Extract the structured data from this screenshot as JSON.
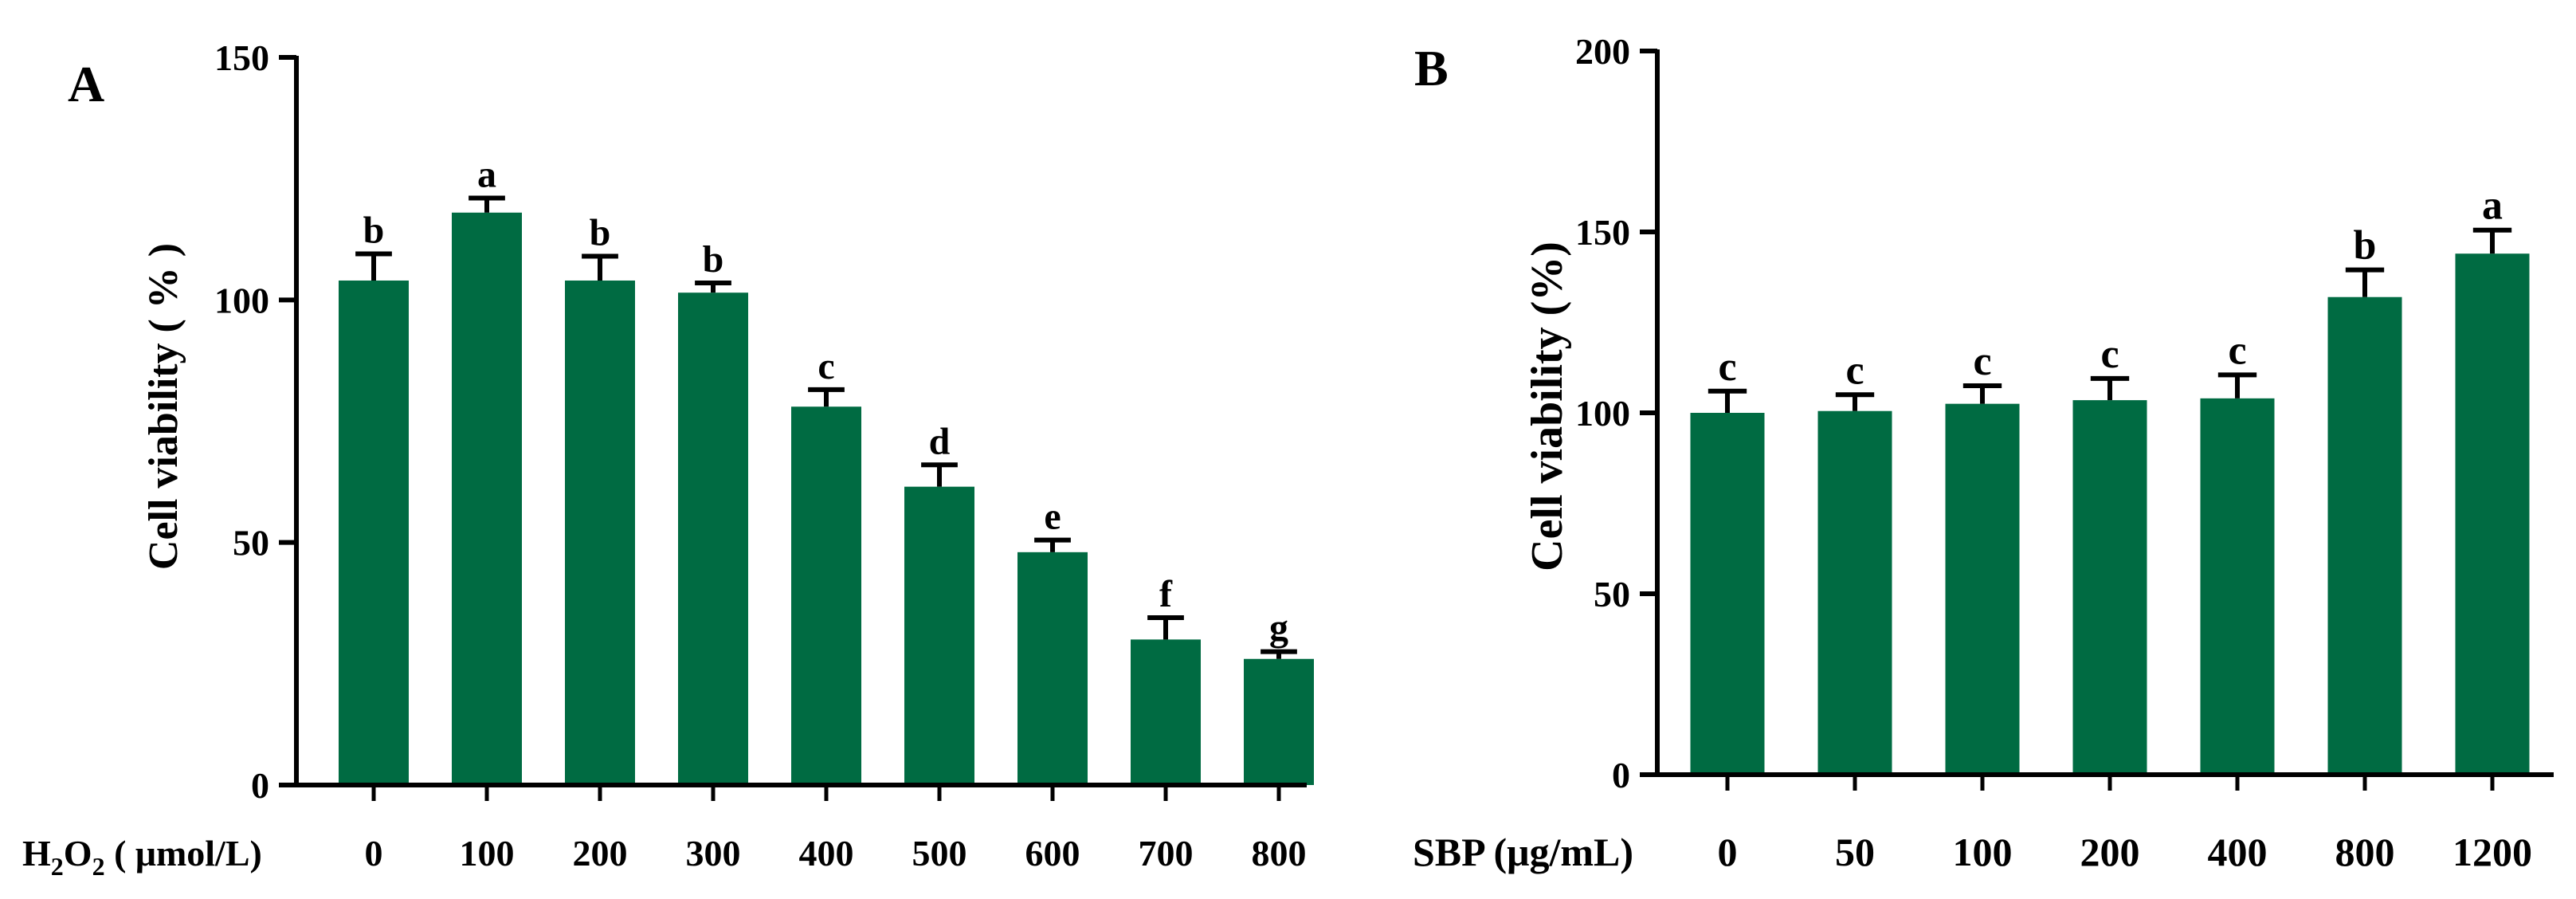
{
  "chart_data": [
    {
      "type": "bar",
      "panel_label": "A",
      "ylabel": "Cell viability (  %  )",
      "xlabel_parts": {
        "main": "H",
        "sub1": "2",
        "mid": "O",
        "sub2": "2",
        "rest": " ( μmol/L)"
      },
      "categories": [
        "0",
        "100",
        "200",
        "300",
        "400",
        "500",
        "600",
        "700",
        "800"
      ],
      "values": [
        104,
        118,
        104,
        101.5,
        78,
        61.5,
        48,
        30,
        26
      ],
      "errors": [
        5.5,
        3,
        5,
        2,
        3.5,
        4.5,
        2.5,
        4.5,
        1.5
      ],
      "significance": [
        "b",
        "a",
        "b",
        "b",
        "c",
        "d",
        "e",
        "f",
        "g"
      ],
      "ylim": [
        0,
        150
      ],
      "yticks": [
        0,
        50,
        100,
        150
      ],
      "bar_color": "#006b42"
    },
    {
      "type": "bar",
      "panel_label": "B",
      "ylabel": "Cell viability (%)",
      "xlabel_parts": {
        "main": "SBP",
        "rest": " (μg/mL)"
      },
      "categories": [
        "0",
        "50",
        "100",
        "200",
        "400",
        "800",
        "1200"
      ],
      "values": [
        100,
        100.5,
        102.5,
        103.5,
        104,
        132,
        144
      ],
      "errors": [
        6,
        4.5,
        5,
        6,
        6.5,
        7.5,
        6.5
      ],
      "significance": [
        "c",
        "c",
        "c",
        "c",
        "c",
        "b",
        "a"
      ],
      "ylim": [
        0,
        200
      ],
      "yticks": [
        0,
        50,
        100,
        150,
        200
      ],
      "bar_color": "#006b42"
    }
  ]
}
